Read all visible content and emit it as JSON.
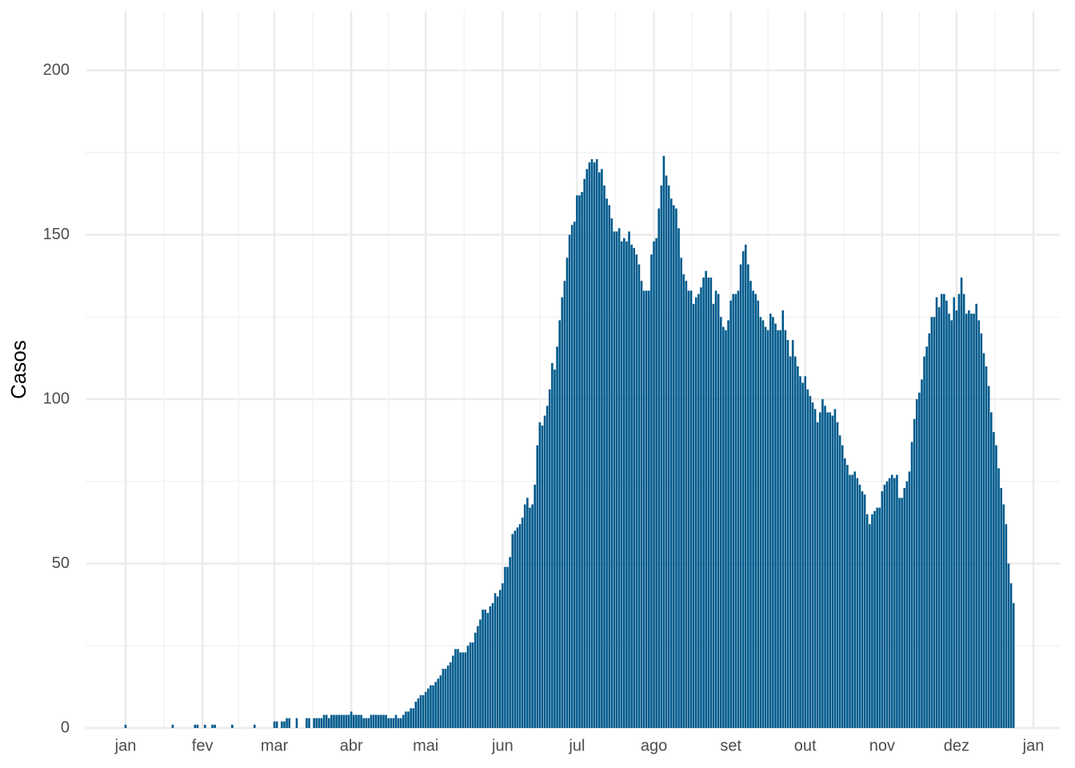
{
  "chart_data": {
    "type": "bar",
    "y_label": "Casos",
    "color": "#005a8c",
    "grid": true,
    "ylim": [
      0,
      218
    ],
    "yticks": [
      0,
      50,
      100,
      150,
      200
    ],
    "y_minor_ticks": [
      25,
      75,
      125,
      175
    ],
    "categories": [
      "jan",
      null,
      null,
      null,
      null,
      null,
      null,
      null,
      null,
      null,
      null,
      null,
      null,
      null,
      null,
      null,
      null,
      null,
      null,
      null,
      null,
      null,
      null,
      null,
      null,
      null,
      null,
      null,
      null,
      null,
      null,
      "fev",
      null,
      null,
      null,
      null,
      null,
      null,
      null,
      null,
      null,
      null,
      null,
      null,
      null,
      null,
      null,
      null,
      null,
      null,
      null,
      null,
      null,
      null,
      null,
      null,
      null,
      null,
      null,
      null,
      "mar",
      null,
      null,
      null,
      null,
      null,
      null,
      null,
      null,
      null,
      null,
      null,
      null,
      null,
      null,
      null,
      null,
      null,
      null,
      null,
      null,
      null,
      null,
      null,
      null,
      null,
      null,
      null,
      null,
      null,
      null,
      "abr",
      null,
      null,
      null,
      null,
      null,
      null,
      null,
      null,
      null,
      null,
      null,
      null,
      null,
      null,
      null,
      null,
      null,
      null,
      null,
      null,
      null,
      null,
      null,
      null,
      null,
      null,
      null,
      null,
      null,
      "mai",
      null,
      null,
      null,
      null,
      null,
      null,
      null,
      null,
      null,
      null,
      null,
      null,
      null,
      null,
      null,
      null,
      null,
      null,
      null,
      null,
      null,
      null,
      null,
      null,
      null,
      null,
      null,
      null,
      null,
      null,
      "jun",
      null,
      null,
      null,
      null,
      null,
      null,
      null,
      null,
      null,
      null,
      null,
      null,
      null,
      null,
      null,
      null,
      null,
      null,
      null,
      null,
      null,
      null,
      null,
      null,
      null,
      null,
      null,
      null,
      null,
      "jul",
      null,
      null,
      null,
      null,
      null,
      null,
      null,
      null,
      null,
      null,
      null,
      null,
      null,
      null,
      null,
      null,
      null,
      null,
      null,
      null,
      null,
      null,
      null,
      null,
      null,
      null,
      null,
      null,
      null,
      null,
      "ago",
      null,
      null,
      null,
      null,
      null,
      null,
      null,
      null,
      null,
      null,
      null,
      null,
      null,
      null,
      null,
      null,
      null,
      null,
      null,
      null,
      null,
      null,
      null,
      null,
      null,
      null,
      null,
      null,
      null,
      null,
      "set",
      null,
      null,
      null,
      null,
      null,
      null,
      null,
      null,
      null,
      null,
      null,
      null,
      null,
      null,
      null,
      null,
      null,
      null,
      null,
      null,
      null,
      null,
      null,
      null,
      null,
      null,
      null,
      null,
      null,
      "out",
      null,
      null,
      null,
      null,
      null,
      null,
      null,
      null,
      null,
      null,
      null,
      null,
      null,
      null,
      null,
      null,
      null,
      null,
      null,
      null,
      null,
      null,
      null,
      null,
      null,
      null,
      null,
      null,
      null,
      null,
      "nov",
      null,
      null,
      null,
      null,
      null,
      null,
      null,
      null,
      null,
      null,
      null,
      null,
      null,
      null,
      null,
      null,
      null,
      null,
      null,
      null,
      null,
      null,
      null,
      null,
      null,
      null,
      null,
      null,
      null,
      "dez",
      null,
      null,
      null,
      null,
      null,
      null,
      null,
      null,
      null,
      null,
      null,
      null,
      null,
      null,
      null,
      null,
      null,
      null,
      null,
      null,
      null,
      null,
      null,
      null,
      null,
      null,
      null,
      null,
      null,
      null,
      "jan"
    ],
    "values": [
      1,
      0,
      0,
      0,
      0,
      0,
      0,
      0,
      0,
      0,
      0,
      0,
      0,
      0,
      0,
      0,
      0,
      0,
      0,
      1,
      0,
      0,
      0,
      0,
      0,
      0,
      0,
      0,
      1,
      1,
      0,
      0,
      1,
      0,
      0,
      1,
      1,
      0,
      0,
      0,
      0,
      0,
      0,
      1,
      0,
      0,
      0,
      0,
      0,
      0,
      0,
      0,
      1,
      0,
      0,
      0,
      0,
      0,
      0,
      0,
      2,
      2,
      0,
      2,
      2,
      3,
      3,
      0,
      0,
      3,
      0,
      0,
      0,
      3,
      3,
      0,
      3,
      3,
      3,
      3,
      4,
      4,
      3,
      4,
      4,
      4,
      4,
      4,
      4,
      4,
      4,
      5,
      4,
      4,
      4,
      4,
      3,
      3,
      3,
      4,
      4,
      4,
      4,
      4,
      4,
      4,
      3,
      3,
      3,
      4,
      3,
      3,
      4,
      5,
      5,
      6,
      6,
      8,
      9,
      10,
      10,
      11,
      12,
      13,
      13,
      14,
      15,
      16,
      18,
      18,
      19,
      20,
      22,
      24,
      24,
      23,
      23,
      23,
      25,
      26,
      26,
      29,
      31,
      33,
      36,
      36,
      35,
      37,
      38,
      41,
      40,
      42,
      44,
      49,
      49,
      52,
      59,
      60,
      61,
      62,
      64,
      68,
      70,
      67,
      68,
      74,
      86,
      93,
      92,
      95,
      98,
      103,
      111,
      109,
      116,
      124,
      131,
      136,
      143,
      150,
      153,
      154,
      162,
      162,
      163,
      167,
      170,
      172,
      173,
      172,
      173,
      169,
      170,
      165,
      161,
      159,
      155,
      151,
      151,
      152,
      148,
      149,
      148,
      151,
      147,
      146,
      144,
      141,
      136,
      133,
      133,
      133,
      144,
      148,
      149,
      158,
      165,
      174,
      168,
      165,
      161,
      159,
      158,
      152,
      143,
      138,
      136,
      133,
      133,
      129,
      131,
      132,
      134,
      137,
      139,
      137,
      137,
      129,
      133,
      132,
      125,
      122,
      121,
      124,
      130,
      132,
      132,
      133,
      141,
      145,
      147,
      141,
      136,
      133,
      132,
      130,
      125,
      124,
      122,
      121,
      126,
      125,
      123,
      121,
      121,
      127,
      121,
      118,
      113,
      118,
      113,
      110,
      107,
      105,
      107,
      103,
      101,
      99,
      97,
      93,
      96,
      100,
      98,
      96,
      96,
      95,
      97,
      93,
      89,
      86,
      82,
      80,
      77,
      77,
      78,
      76,
      74,
      72,
      71,
      65,
      62,
      65,
      66,
      67,
      67,
      72,
      74,
      75,
      76,
      77,
      76,
      77,
      70,
      70,
      73,
      75,
      78,
      87,
      94,
      100,
      102,
      106,
      113,
      116,
      120,
      125,
      125,
      131,
      128,
      132,
      132,
      130,
      126,
      124,
      131,
      127,
      132,
      137,
      132,
      126,
      127,
      126,
      126,
      129,
      124,
      120,
      114,
      110,
      104,
      96,
      90,
      86,
      79,
      73,
      68,
      62,
      50,
      44,
      38,
      null,
      null,
      null,
      null,
      null,
      null,
      null,
      null
    ]
  }
}
